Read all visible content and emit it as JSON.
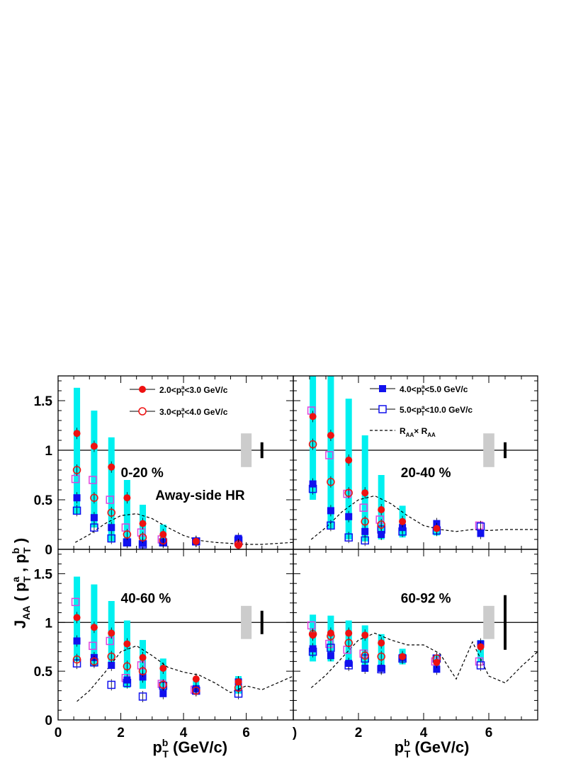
{
  "chart_data": {
    "type": "scatter",
    "x_axis": {
      "title": "p",
      "title_sup": "b",
      "title_sub": "T",
      "title_suffix": " (GeV/c)",
      "range": [
        0,
        7.5
      ],
      "ticks": [
        "0",
        "2",
        "4",
        "6"
      ]
    },
    "y_axis": {
      "title": "J",
      "title_sub": "AA",
      "title_args": "( p",
      "title_args_sup1": "a",
      "title_args_sub1": "T",
      "title_args_mid": " , p",
      "title_args_sup2": "b",
      "title_args_sub2": "T",
      "title_args_end": " )",
      "range": [
        0,
        1.75
      ],
      "ticks_upper": [
        "0",
        "0.5",
        "1",
        "1.5"
      ],
      "ticks_lower": [
        "0",
        "0.5",
        "1",
        "1.5"
      ],
      "lower_right_first_tick": ")"
    },
    "legend": {
      "left": [
        {
          "series": "s1",
          "pre": "2.0<p",
          "sup": "a",
          "sub": "T",
          "post": "<3.0 GeV/c"
        },
        {
          "series": "s2",
          "pre": "3.0<p",
          "sup": "a",
          "sub": "T",
          "post": "<4.0 GeV/c"
        }
      ],
      "right": [
        {
          "series": "s3",
          "pre": "4.0<p",
          "sup": "a",
          "sub": "T",
          "post": "<5.0 GeV/c"
        },
        {
          "series": "s4",
          "pre": "5.0<p",
          "sup": "a",
          "sub": "T",
          "post": "<10.0 GeV/c"
        },
        {
          "series": "raa",
          "pre": "R",
          "sub": "AA",
          "mid": "× R",
          "sub2": "AA"
        }
      ]
    },
    "series_style": {
      "s1": {
        "marker": "filled-circle",
        "color": "#ee1111"
      },
      "s2": {
        "marker": "open-circle",
        "color": "#ee1111"
      },
      "s3": {
        "marker": "filled-square",
        "color": "#1111ee"
      },
      "s4": {
        "marker": "open-square",
        "color": "#1111ee"
      },
      "raa": {
        "marker": "dashed-line",
        "color": "#000000"
      },
      "sys_band": "#00f0f0",
      "sys_alt": "#dd44dd",
      "norm_box": "#cccccc"
    },
    "panels": [
      {
        "id": "0-20",
        "label": "0-20 %",
        "sublabel": "Away-side HR",
        "norm_box": [
          0.83,
          1.17
        ],
        "norm_bar": [
          0.92,
          1.08
        ],
        "x": [
          0.6,
          1.15,
          1.7,
          2.2,
          2.7,
          3.35,
          4.4,
          5.75
        ],
        "s1": [
          1.17,
          1.04,
          0.83,
          0.52,
          0.26,
          0.15,
          0.08,
          0.04
        ],
        "s2": [
          0.8,
          0.52,
          0.37,
          0.15,
          0.12,
          0.09,
          null,
          0.05
        ],
        "s3": [
          0.52,
          0.32,
          0.22,
          0.07,
          0.06,
          0.07,
          0.08,
          0.11
        ],
        "s4": [
          0.39,
          0.22,
          0.11,
          0.07,
          0.05,
          0.07,
          0.08,
          0.09
        ],
        "band": [
          [
            0.35,
            1.63
          ],
          [
            0.22,
            1.4
          ],
          [
            0.08,
            1.13
          ],
          [
            0.05,
            0.7
          ],
          [
            0.05,
            0.45
          ],
          [
            0.06,
            0.25
          ],
          null,
          null
        ],
        "alt": [
          0.71,
          0.7,
          0.5,
          0.22,
          0.17,
          0.1,
          null,
          null
        ],
        "raa": {
          "x": [
            0.55,
            1,
            1.5,
            2,
            2.5,
            3,
            3.5,
            4,
            4.5,
            5,
            5.5,
            6,
            6.5,
            7,
            7.5
          ],
          "y": [
            0.07,
            0.15,
            0.26,
            0.34,
            0.36,
            0.31,
            0.22,
            0.14,
            0.09,
            0.07,
            0.06,
            0.05,
            0.05,
            0.06,
            0.07
          ]
        }
      },
      {
        "id": "20-40",
        "label": "20-40 %",
        "norm_box": [
          0.83,
          1.17
        ],
        "norm_bar": [
          0.92,
          1.08
        ],
        "x": [
          0.6,
          1.15,
          1.7,
          2.2,
          2.7,
          3.35,
          4.4,
          5.75
        ],
        "s1": [
          1.34,
          1.15,
          0.9,
          0.57,
          0.4,
          0.28,
          0.21,
          null
        ],
        "s2": [
          1.06,
          0.68,
          0.57,
          0.28,
          0.25,
          null,
          null,
          null
        ],
        "s3": [
          0.66,
          0.39,
          0.33,
          0.18,
          0.15,
          0.22,
          0.26,
          0.16
        ],
        "s4": [
          0.61,
          0.24,
          0.12,
          0.09,
          0.2,
          0.18,
          0.19,
          0.23
        ],
        "band": [
          [
            0.5,
            1.75
          ],
          [
            0.2,
            1.75
          ],
          [
            0.1,
            1.52
          ],
          [
            0.08,
            1.15
          ],
          [
            0.1,
            0.75
          ],
          [
            0.12,
            0.44
          ],
          [
            0.14,
            0.28
          ],
          null
        ],
        "alt": [
          1.4,
          0.95,
          0.56,
          0.42,
          0.3,
          null,
          null,
          0.24
        ],
        "raa": {
          "x": [
            0.55,
            1,
            1.5,
            2,
            2.5,
            3,
            3.5,
            4,
            4.5,
            5,
            5.5,
            6,
            6.5,
            7,
            7.5
          ],
          "y": [
            0.1,
            0.22,
            0.38,
            0.5,
            0.54,
            0.46,
            0.34,
            0.24,
            0.2,
            0.18,
            0.2,
            0.19,
            0.2,
            0.2,
            0.2
          ]
        }
      },
      {
        "id": "40-60",
        "label": "40-60 %",
        "norm_box": [
          0.83,
          1.17
        ],
        "norm_bar": [
          0.88,
          1.12
        ],
        "x": [
          0.6,
          1.15,
          1.7,
          2.2,
          2.7,
          3.35,
          4.4,
          5.75
        ],
        "s1": [
          1.05,
          0.95,
          0.89,
          0.78,
          0.64,
          0.53,
          0.42,
          0.39
        ],
        "s2": [
          0.62,
          0.6,
          0.65,
          0.55,
          0.5,
          0.36,
          0.3,
          0.33
        ],
        "s3": [
          0.81,
          0.64,
          0.56,
          0.41,
          0.44,
          0.27,
          0.32,
          0.39
        ],
        "s4": [
          0.58,
          0.59,
          0.36,
          0.38,
          0.24,
          0.35,
          0.3,
          0.27
        ],
        "band": [
          [
            0.6,
            1.47
          ],
          [
            0.55,
            1.39
          ],
          [
            0.55,
            1.22
          ],
          [
            0.33,
            1.02
          ],
          [
            0.32,
            0.82
          ],
          [
            0.3,
            0.63
          ],
          [
            0.28,
            0.4
          ],
          [
            0.27,
            0.45
          ]
        ],
        "alt": [
          1.21,
          0.76,
          0.81,
          0.43,
          0.56,
          0.37,
          0.31,
          null
        ],
        "raa": {
          "x": [
            0.6,
            1,
            1.5,
            2,
            2.5,
            3,
            3.5,
            4,
            4.5,
            5,
            5.5,
            6,
            6.5,
            7,
            7.5
          ],
          "y": [
            0.19,
            0.3,
            0.49,
            0.7,
            0.76,
            0.66,
            0.54,
            0.49,
            0.46,
            0.38,
            0.28,
            0.35,
            0.31,
            0.38,
            0.45
          ]
        }
      },
      {
        "id": "60-92",
        "label": "60-92 %",
        "norm_box": [
          0.83,
          1.17
        ],
        "norm_bar": [
          0.72,
          1.28
        ],
        "x": [
          0.6,
          1.15,
          1.7,
          2.2,
          2.7,
          3.35,
          4.4,
          5.75
        ],
        "s1": [
          0.87,
          0.89,
          0.89,
          0.87,
          0.79,
          0.65,
          0.59,
          0.75
        ],
        "s2": [
          0.88,
          0.86,
          0.79,
          0.66,
          0.65,
          null,
          0.63,
          null
        ],
        "s3": [
          0.73,
          0.66,
          0.58,
          0.53,
          0.53,
          0.64,
          0.52,
          0.78
        ],
        "s4": [
          0.7,
          0.74,
          0.56,
          0.63,
          0.52,
          0.63,
          0.63,
          0.56
        ],
        "band": [
          [
            0.6,
            1.08
          ],
          [
            0.6,
            1.07
          ],
          [
            0.58,
            1.02
          ],
          [
            0.52,
            0.97
          ],
          [
            0.5,
            0.88
          ],
          [
            0.57,
            0.73
          ],
          [
            0.55,
            0.66
          ],
          [
            0.6,
            0.82
          ]
        ],
        "alt": [
          0.97,
          0.78,
          0.72,
          0.68,
          null,
          null,
          0.6,
          0.6
        ],
        "raa": {
          "x": [
            0.55,
            1,
            1.5,
            2,
            2.5,
            3,
            3.5,
            4,
            4.5,
            5,
            5.5,
            6,
            6.5,
            7,
            7.5
          ],
          "y": [
            0.33,
            0.46,
            0.64,
            0.82,
            0.89,
            0.82,
            0.77,
            0.77,
            0.68,
            0.42,
            0.8,
            0.45,
            0.38,
            0.55,
            0.7
          ]
        }
      }
    ]
  }
}
